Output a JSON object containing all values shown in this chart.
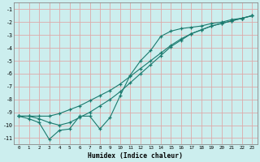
{
  "xlabel": "Humidex (Indice chaleur)",
  "x_values": [
    0,
    1,
    2,
    3,
    4,
    5,
    6,
    7,
    8,
    9,
    10,
    11,
    12,
    13,
    14,
    15,
    16,
    17,
    18,
    19,
    20,
    21,
    22,
    23
  ],
  "line_noisy": [
    -9.3,
    -9.5,
    -9.8,
    -11.1,
    -10.4,
    -10.3,
    -9.3,
    -9.3,
    -10.3,
    -9.4,
    -7.7,
    -6.1,
    -5.0,
    -4.2,
    -3.1,
    -2.7,
    -2.5,
    -2.4,
    -2.3,
    -2.1,
    -2.0,
    -1.8,
    -1.7,
    -1.5
  ],
  "line_upper": [
    -9.3,
    -9.3,
    -9.3,
    -9.3,
    -9.1,
    -8.8,
    -8.5,
    -8.1,
    -7.7,
    -7.3,
    -6.8,
    -6.2,
    -5.6,
    -5.0,
    -4.4,
    -3.8,
    -3.3,
    -2.9,
    -2.6,
    -2.3,
    -2.1,
    -1.9,
    -1.7,
    -1.5
  ],
  "line_lower": [
    -9.3,
    -9.3,
    -9.5,
    -9.8,
    -10.0,
    -9.8,
    -9.4,
    -9.0,
    -8.5,
    -8.0,
    -7.4,
    -6.7,
    -6.0,
    -5.3,
    -4.6,
    -3.9,
    -3.4,
    -2.9,
    -2.6,
    -2.3,
    -2.1,
    -1.9,
    -1.7,
    -1.5
  ],
  "bg_color": "#cceeee",
  "line_color": "#1a7a6e",
  "grid_color": "#ddaaaa",
  "ylim": [
    -11.5,
    -0.5
  ],
  "xlim": [
    -0.5,
    23.5
  ],
  "yticks": [
    -11,
    -10,
    -9,
    -8,
    -7,
    -6,
    -5,
    -4,
    -3,
    -2,
    -1
  ],
  "xticks": [
    0,
    1,
    2,
    3,
    4,
    5,
    6,
    7,
    8,
    9,
    10,
    11,
    12,
    13,
    14,
    15,
    16,
    17,
    18,
    19,
    20,
    21,
    22,
    23
  ]
}
